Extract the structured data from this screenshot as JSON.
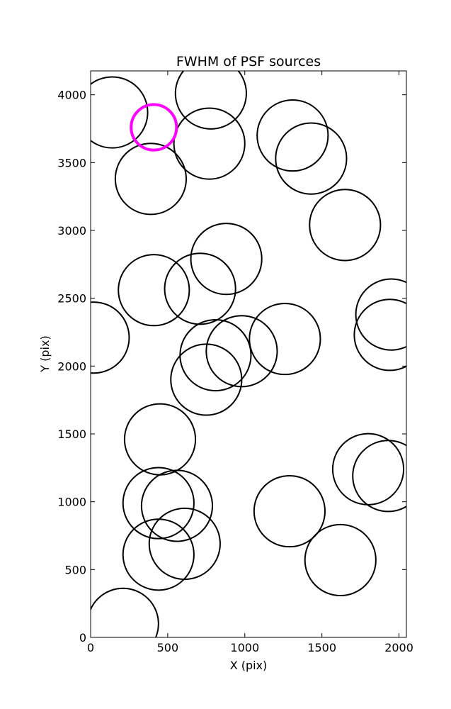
{
  "chart_data": {
    "type": "scatter",
    "title": "FWHM of PSF sources",
    "xlabel": "X (pix)",
    "ylabel": "Y (pix)",
    "xlim": [
      0,
      2048
    ],
    "ylim": [
      0,
      4176
    ],
    "grid": false,
    "legend": "none",
    "x_ticks": [
      0,
      500,
      1000,
      1500,
      2000
    ],
    "x_tick_labels": [
      "0",
      "500",
      "1000",
      "1500",
      "2000"
    ],
    "y_ticks": [
      0,
      500,
      1000,
      1500,
      2000,
      2500,
      3000,
      3500,
      4000
    ],
    "y_tick_labels": [
      "0",
      "500",
      "1000",
      "1500",
      "2000",
      "2500",
      "3000",
      "3500",
      "4000"
    ],
    "marker": "circle",
    "marker_radius_pix": 230,
    "colors": {
      "normal": "#000000",
      "highlight": "#ff00ff"
    },
    "series": [
      {
        "color": "#000000",
        "points": [
          {
            "x": 140,
            "y": 3870
          },
          {
            "x": 780,
            "y": 4010
          },
          {
            "x": 770,
            "y": 3640
          },
          {
            "x": 390,
            "y": 3380
          },
          {
            "x": 1310,
            "y": 3700
          },
          {
            "x": 1430,
            "y": 3530
          },
          {
            "x": 1650,
            "y": 3040
          },
          {
            "x": 880,
            "y": 2790
          },
          {
            "x": 410,
            "y": 2560
          },
          {
            "x": 710,
            "y": 2570
          },
          {
            "x": 20,
            "y": 2210
          },
          {
            "x": 1950,
            "y": 2380
          },
          {
            "x": 1940,
            "y": 2230
          },
          {
            "x": 1260,
            "y": 2200
          },
          {
            "x": 980,
            "y": 2110
          },
          {
            "x": 810,
            "y": 2080
          },
          {
            "x": 750,
            "y": 1900
          },
          {
            "x": 450,
            "y": 1460
          },
          {
            "x": 1800,
            "y": 1240
          },
          {
            "x": 1930,
            "y": 1190
          },
          {
            "x": 440,
            "y": 990
          },
          {
            "x": 560,
            "y": 970
          },
          {
            "x": 1290,
            "y": 930
          },
          {
            "x": 610,
            "y": 690
          },
          {
            "x": 440,
            "y": 610
          },
          {
            "x": 1620,
            "y": 570
          },
          {
            "x": 210,
            "y": 100
          }
        ]
      },
      {
        "color": "#ff00ff",
        "points": [
          {
            "x": 410,
            "y": 3760
          }
        ]
      }
    ]
  }
}
